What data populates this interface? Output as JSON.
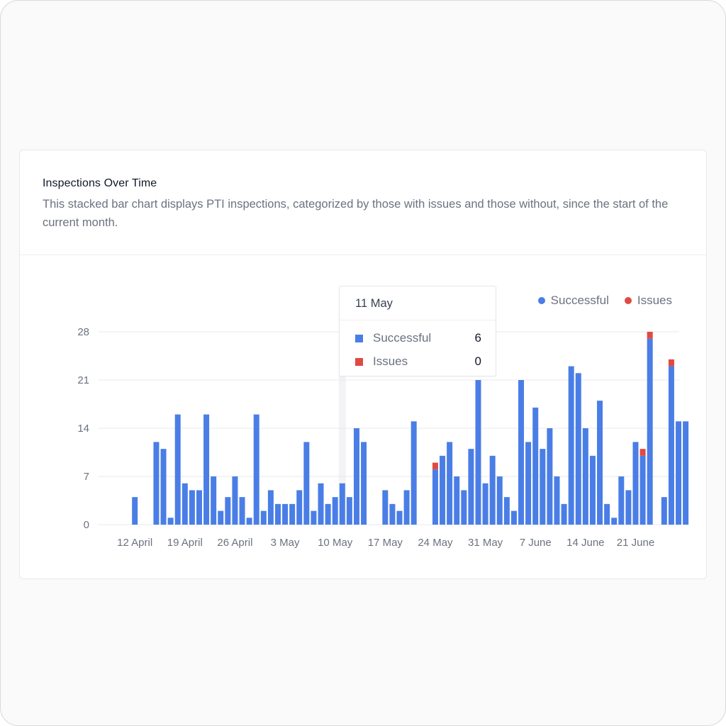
{
  "card": {
    "title": "Inspections Over Time",
    "description": "This stacked bar chart displays PTI inspections, categorized by those with issues and those without, since the start of the current month."
  },
  "colors": {
    "successful": "#4a7ee6",
    "issues": "#e04a43",
    "grid": "#e8e8eb",
    "hover_band": "#f3f3f5",
    "axis_text": "#6b7280"
  },
  "legend": {
    "items": [
      {
        "label": "Successful",
        "color": "#4a7ee6"
      },
      {
        "label": "Issues",
        "color": "#e04a43"
      }
    ]
  },
  "tooltip": {
    "date": "11 May",
    "rows": [
      {
        "label": "Successful",
        "value": "6",
        "color": "#4a7ee6"
      },
      {
        "label": "Issues",
        "value": "0",
        "color": "#e04a43"
      }
    ]
  },
  "chart_data": {
    "type": "bar",
    "stacked": true,
    "x_start": "2024-04-10",
    "x_end": "2024-06-29",
    "x_tick_labels": [
      "12 April",
      "19 April",
      "26 April",
      "3 May",
      "10 May",
      "17 May",
      "24 May",
      "31 May",
      "7 June",
      "14 June",
      "21 June"
    ],
    "y_ticks": [
      0,
      7,
      14,
      21,
      28
    ],
    "ylim": [
      0,
      28
    ],
    "grid": true,
    "legend_position": "top-right",
    "hovered_category": "11 May",
    "series": [
      {
        "name": "Successful",
        "values": [
          0,
          0,
          4,
          0,
          0,
          12,
          11,
          1,
          16,
          6,
          5,
          5,
          16,
          7,
          2,
          4,
          7,
          4,
          1,
          16,
          2,
          5,
          3,
          3,
          3,
          5,
          12,
          2,
          6,
          3,
          4,
          6,
          4,
          14,
          12,
          0,
          0,
          5,
          3,
          2,
          5,
          15,
          0,
          0,
          8,
          10,
          12,
          7,
          5,
          11,
          21,
          6,
          10,
          7,
          4,
          2,
          21,
          12,
          17,
          11,
          14,
          7,
          3,
          23,
          22,
          14,
          10,
          18,
          3,
          1,
          7,
          5,
          12,
          10,
          27,
          0,
          4,
          23,
          15,
          15
        ]
      },
      {
        "name": "Issues",
        "values": [
          0,
          0,
          0,
          0,
          0,
          0,
          0,
          0,
          0,
          0,
          0,
          0,
          0,
          0,
          0,
          0,
          0,
          0,
          0,
          0,
          0,
          0,
          0,
          0,
          0,
          0,
          0,
          0,
          0,
          0,
          0,
          0,
          0,
          0,
          0,
          0,
          0,
          0,
          0,
          0,
          0,
          0,
          0,
          0,
          1,
          0,
          0,
          0,
          0,
          0,
          0,
          0,
          0,
          0,
          0,
          0,
          0,
          0,
          0,
          0,
          0,
          0,
          0,
          0,
          0,
          0,
          0,
          0,
          0,
          0,
          0,
          0,
          0,
          1,
          1,
          0,
          0,
          1,
          0,
          0
        ]
      }
    ]
  }
}
